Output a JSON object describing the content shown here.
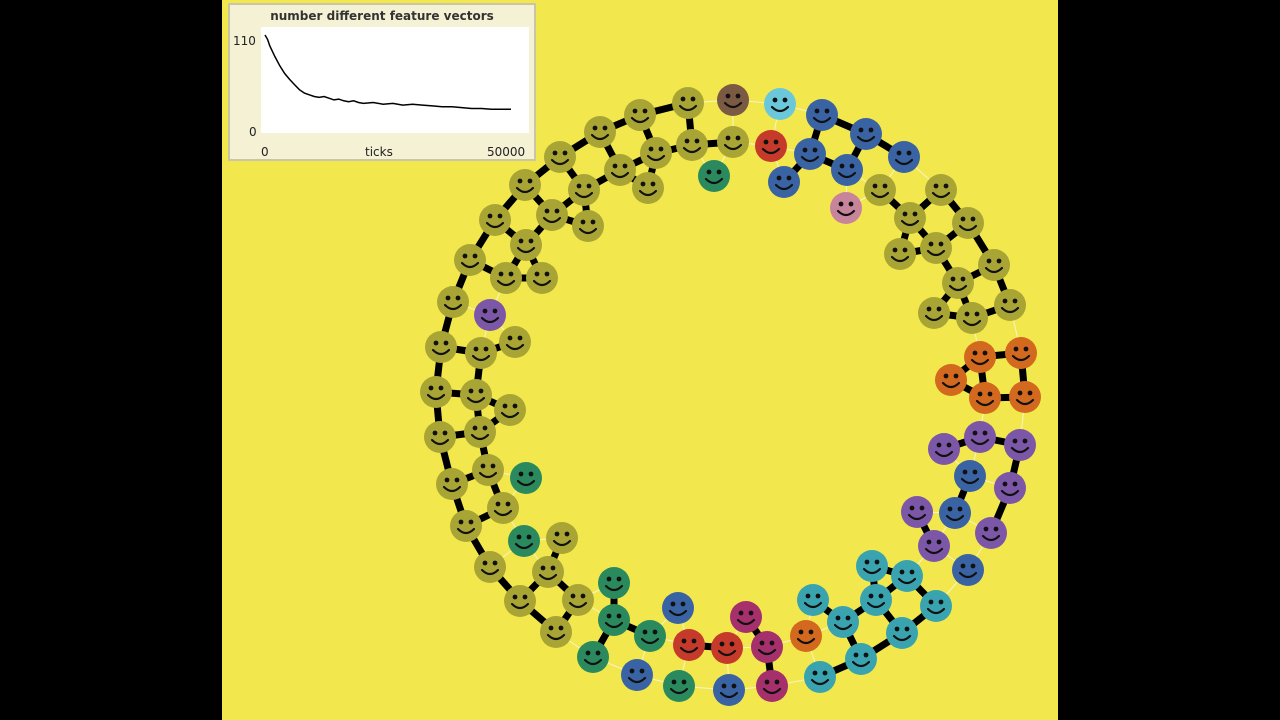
{
  "plot": {
    "title": "number different feature vectors",
    "x_label": "ticks",
    "x_min": "0",
    "x_max": "50000",
    "y_min": "0",
    "y_max": "110"
  },
  "chart_data": {
    "type": "line",
    "title": "number different feature vectors",
    "xlabel": "ticks",
    "ylabel": "",
    "xlim": [
      0,
      50000
    ],
    "ylim": [
      0,
      110
    ],
    "series": [
      {
        "name": "number different feature vectors",
        "x": [
          0,
          500,
          1000,
          2000,
          3000,
          4000,
          5000,
          6000,
          7000,
          8000,
          9000,
          10000,
          11000,
          12000,
          13000,
          14000,
          15000,
          16000,
          17000,
          18000,
          19000,
          20000,
          22000,
          24000,
          26000,
          28000,
          30000,
          32000,
          34000,
          36000,
          38000,
          40000,
          42000,
          44000,
          46000,
          48000,
          50000
        ],
        "values": [
          110,
          105,
          97,
          85,
          74,
          65,
          58,
          52,
          46,
          42,
          40,
          38,
          37,
          38,
          36,
          34,
          35,
          33,
          32,
          33,
          31,
          30,
          31,
          29,
          30,
          28,
          29,
          28,
          27,
          26,
          26,
          25,
          24,
          24,
          23,
          23,
          23
        ]
      }
    ]
  },
  "agents": {
    "colors": {
      "olive": "#a9a535",
      "blue": "#3a63a3",
      "teal": "#3aa3b0",
      "orange": "#d2691e",
      "purple": "#7c57a7",
      "green": "#2a8a5e",
      "red": "#c53a2a",
      "magenta": "#a5306b",
      "pink": "#c7849b",
      "brown": "#7b5a43",
      "cyan": "#6bc8da"
    }
  }
}
